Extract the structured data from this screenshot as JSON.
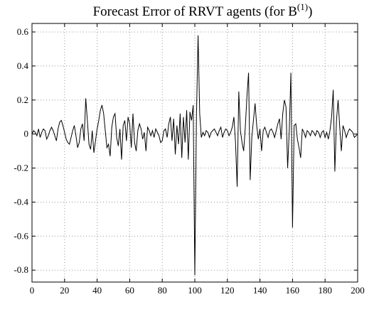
{
  "chart_data": {
    "type": "line",
    "title_parts": [
      "Forecast Error of RRVT agents (for B",
      "(1)",
      ")"
    ],
    "x": [
      0,
      1,
      2,
      3,
      4,
      5,
      6,
      7,
      8,
      9,
      10,
      11,
      12,
      13,
      14,
      15,
      16,
      17,
      18,
      19,
      20,
      21,
      22,
      23,
      24,
      25,
      26,
      27,
      28,
      29,
      30,
      31,
      32,
      33,
      34,
      35,
      36,
      37,
      38,
      39,
      40,
      41,
      42,
      43,
      44,
      45,
      46,
      47,
      48,
      49,
      50,
      51,
      52,
      53,
      54,
      55,
      56,
      57,
      58,
      59,
      60,
      61,
      62,
      63,
      64,
      65,
      66,
      67,
      68,
      69,
      70,
      71,
      72,
      73,
      74,
      75,
      76,
      77,
      78,
      79,
      80,
      81,
      82,
      83,
      84,
      85,
      86,
      87,
      88,
      89,
      90,
      91,
      92,
      93,
      94,
      95,
      96,
      97,
      98,
      99,
      100,
      101,
      102,
      103,
      104,
      105,
      106,
      107,
      108,
      109,
      110,
      111,
      112,
      113,
      114,
      115,
      116,
      117,
      118,
      119,
      120,
      121,
      122,
      123,
      124,
      125,
      126,
      127,
      128,
      129,
      130,
      131,
      132,
      133,
      134,
      135,
      136,
      137,
      138,
      139,
      140,
      141,
      142,
      143,
      144,
      145,
      146,
      147,
      148,
      149,
      150,
      151,
      152,
      153,
      154,
      155,
      156,
      157,
      158,
      159,
      160,
      161,
      162,
      163,
      164,
      165,
      166,
      167,
      168,
      169,
      170,
      171,
      172,
      173,
      174,
      175,
      176,
      177,
      178,
      179,
      180,
      181,
      182,
      183,
      184,
      185,
      186,
      187,
      188,
      189,
      190,
      191,
      192,
      193,
      194,
      195,
      196,
      197,
      198,
      199,
      200
    ],
    "series": [
      {
        "color": "#000000",
        "values": [
          0,
          0.02,
          0.01,
          -0.01,
          0.03,
          -0.02,
          0.01,
          0.03,
          0.02,
          -0.03,
          -0.01,
          0.02,
          0.04,
          0.02,
          -0.01,
          -0.04,
          0.03,
          0.07,
          0.08,
          0.05,
          0.01,
          -0.03,
          -0.05,
          -0.06,
          -0.02,
          0.02,
          0.05,
          -0.01,
          -0.08,
          -0.05,
          0.03,
          0.06,
          -0.04,
          0.21,
          0.08,
          -0.06,
          -0.09,
          0.02,
          -0.11,
          -0.04,
          0.03,
          0.08,
          0.14,
          0.17,
          0.12,
          0.02,
          -0.08,
          -0.06,
          -0.13,
          0.04,
          0.1,
          0.12,
          -0.02,
          -0.07,
          0.03,
          -0.15,
          0.05,
          0.08,
          -0.04,
          0.1,
          0.06,
          -0.08,
          0.12,
          -0.05,
          -0.1,
          0.02,
          0.06,
          0.03,
          -0.03,
          0.01,
          -0.1,
          0.04,
          0.02,
          -0.01,
          0.02,
          -0.02,
          0.03,
          0.01,
          -0.01,
          -0.05,
          -0.04,
          0.02,
          0.03,
          -0.02,
          0.06,
          0.1,
          -0.04,
          0.09,
          -0.12,
          0.05,
          -0.06,
          0.12,
          -0.14,
          0.1,
          -0.05,
          0.14,
          -0.15,
          0.13,
          0.08,
          0.17,
          -0.83,
          0.1,
          0.58,
          0.12,
          -0.02,
          0.01,
          -0.01,
          0.02,
          0.01,
          -0.02,
          0.01,
          0.02,
          0.03,
          0.01,
          -0.01,
          0.02,
          0.04,
          -0.02,
          0.01,
          0.03,
          0.02,
          -0.01,
          0.01,
          0.04,
          0.1,
          -0.05,
          -0.31,
          0.25,
          0.02,
          -0.05,
          -0.1,
          0.04,
          0.22,
          0.36,
          -0.27,
          -0.02,
          0.08,
          0.18,
          0.05,
          -0.03,
          0.03,
          -0.1,
          0.02,
          0.04,
          0.01,
          -0.02,
          0.02,
          0.03,
          0.01,
          -0.02,
          0.02,
          0.06,
          0.09,
          -0.03,
          0.12,
          0.2,
          0.16,
          -0.2,
          0.02,
          0.36,
          -0.55,
          0.05,
          0.06,
          -0.03,
          -0.08,
          -0.14,
          0.03,
          0.01,
          -0.02,
          0.02,
          0.01,
          -0.01,
          0.02,
          0.01,
          -0.01,
          0.02,
          0.01,
          -0.02,
          0.01,
          0.02,
          -0.02,
          0.01,
          -0.03,
          0.02,
          0.1,
          0.26,
          -0.22,
          0.08,
          0.2,
          0.04,
          -0.1,
          0.05,
          0.02,
          -0.02,
          0.01,
          0.03,
          0.02,
          0.01,
          -0.02,
          -0.01,
          0
        ]
      }
    ],
    "xlim": [
      0,
      200
    ],
    "xticks": [
      0,
      20,
      40,
      60,
      80,
      100,
      120,
      140,
      160,
      180,
      200
    ],
    "ylim": [
      -0.87,
      0.65
    ],
    "yticks": [
      -0.8,
      -0.6,
      -0.4,
      -0.2,
      0,
      0.2,
      0.4,
      0.6
    ],
    "grid": true
  }
}
